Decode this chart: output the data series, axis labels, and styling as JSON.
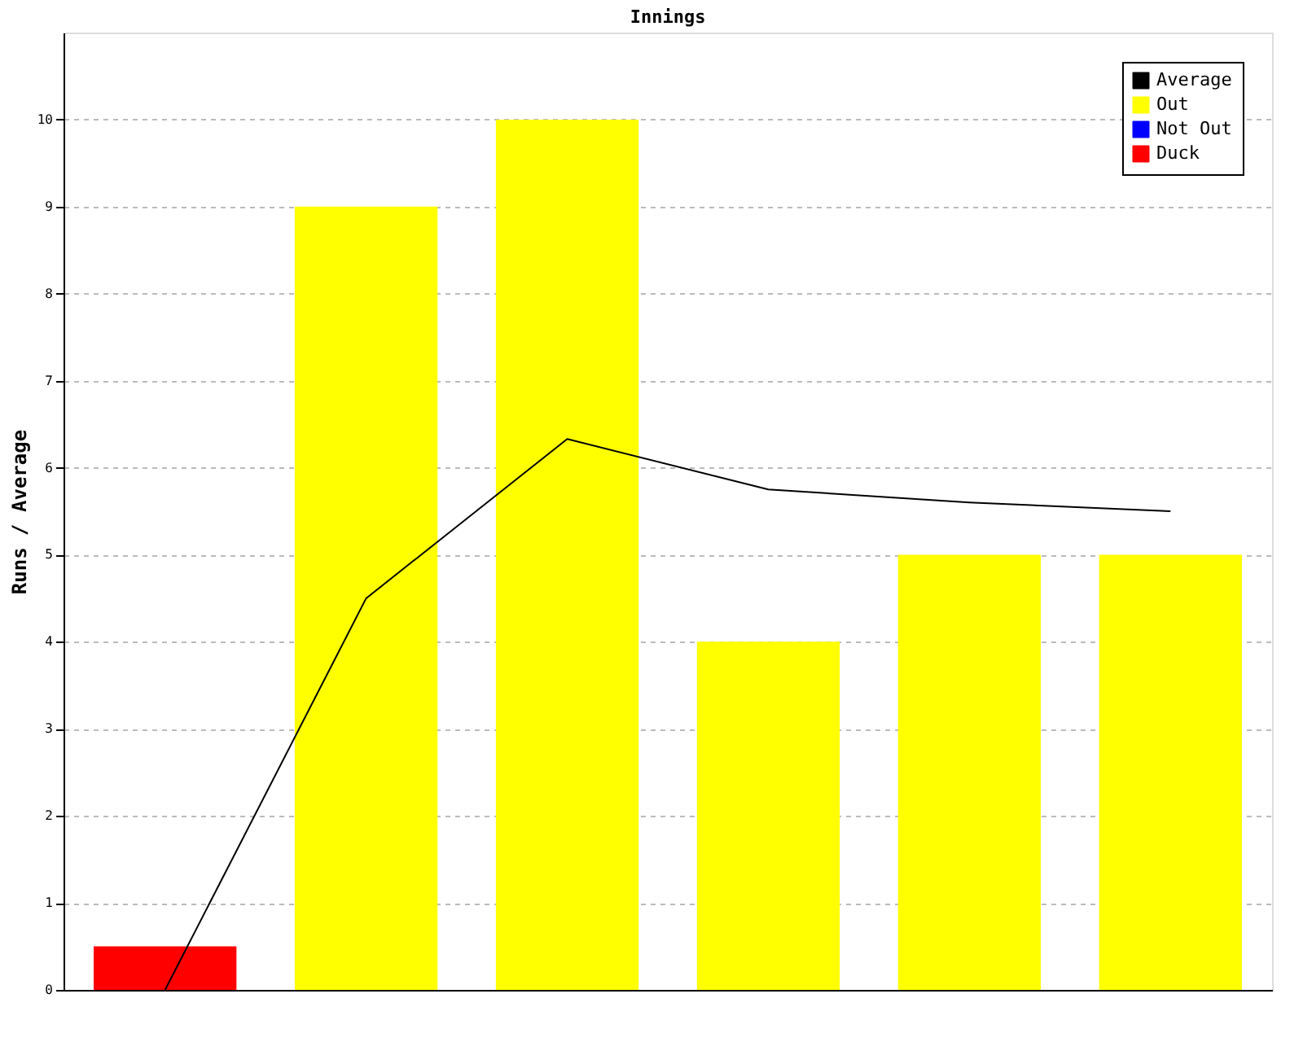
{
  "chart_data": {
    "type": "bar",
    "title": "Innings",
    "ylabel": "Runs / Average",
    "categories": [
      null,
      null,
      null,
      null,
      null,
      null
    ],
    "series": [
      {
        "name": "Average",
        "type": "line",
        "color": "#000000",
        "values": [
          0,
          4.5,
          6.33,
          5.75,
          5.6,
          5.5
        ]
      },
      {
        "name": "Out",
        "color": "#ffff00",
        "values": [
          null,
          9,
          10,
          4,
          5,
          5
        ]
      },
      {
        "name": "Not Out",
        "color": "#0000ff",
        "values": [
          null,
          null,
          null,
          null,
          null,
          null
        ]
      },
      {
        "name": "Duck",
        "color": "#ff0000",
        "values": [
          0.5,
          null,
          null,
          null,
          null,
          null
        ]
      }
    ],
    "ylim": [
      0,
      11
    ],
    "yticks": [
      0,
      1,
      2,
      3,
      4,
      5,
      6,
      7,
      8,
      9,
      10
    ],
    "grid": "y",
    "legend": "top right",
    "marker": "none",
    "line_style": "solid"
  }
}
